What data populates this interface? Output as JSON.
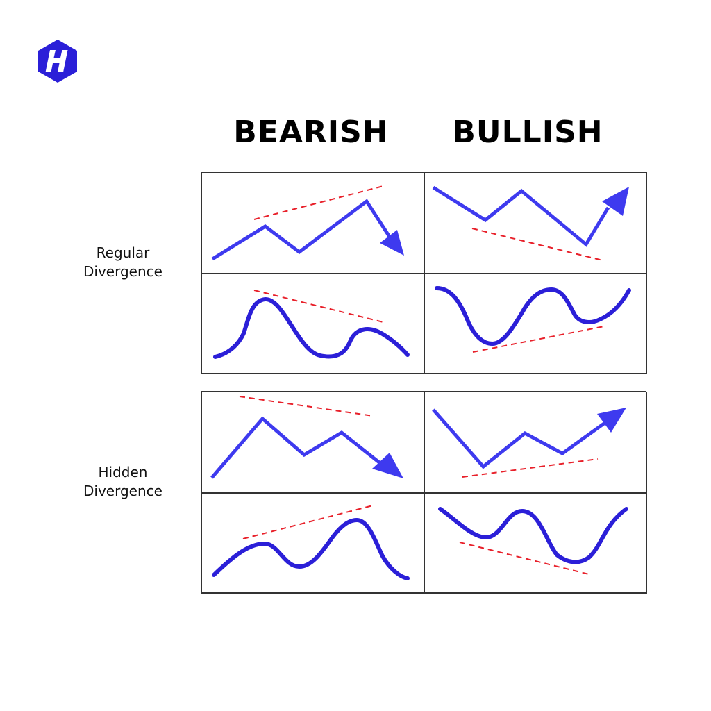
{
  "logo": {
    "name": "brand-logo",
    "letter": "H"
  },
  "colors": {
    "accent_dark": "#2b1fd8",
    "accent_light": "#3e3aef",
    "trendline": "#e8202a",
    "border": "#333333"
  },
  "columns": {
    "bearish": "BEARISH",
    "bullish": "BULLISH"
  },
  "rows": {
    "regular": {
      "line1": "Regular",
      "line2": "Divergence"
    },
    "hidden": {
      "line1": "Hidden",
      "line2": "Divergence"
    }
  }
}
